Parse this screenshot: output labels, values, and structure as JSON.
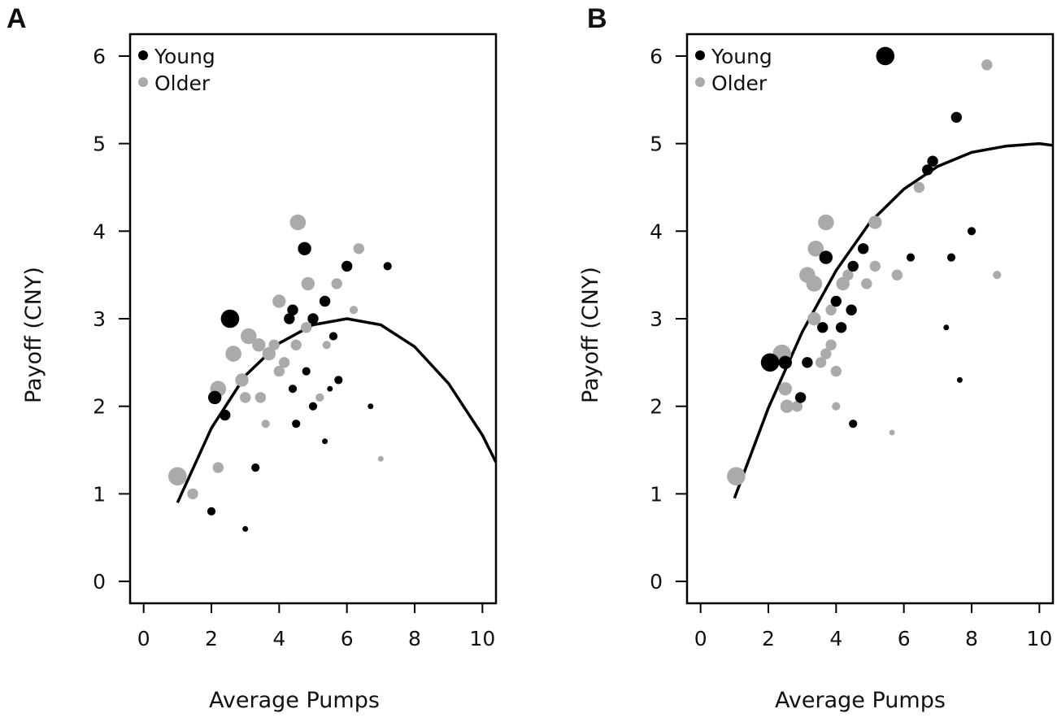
{
  "colors": {
    "young": "#000000",
    "older": "#aaaaaa",
    "axis": "#000000",
    "curve": "#000000"
  },
  "chart_data": [
    {
      "panel_label": "A",
      "type": "scatter",
      "xlabel": "Average Pumps",
      "ylabel": "Payoff (CNY)",
      "xlim": [
        -0.4,
        10.4
      ],
      "ylim": [
        -0.25,
        6.25
      ],
      "xticks": [
        "0",
        "2",
        "4",
        "6",
        "8",
        "10"
      ],
      "yticks": [
        "0",
        "1",
        "2",
        "3",
        "4",
        "5",
        "6"
      ],
      "legend": {
        "position": "top-left",
        "entries": [
          "Young",
          "Older"
        ]
      },
      "series": [
        {
          "name": "Young",
          "color": "#000000",
          "points": [
            {
              "x": 2.0,
              "y": 0.8,
              "size": 2
            },
            {
              "x": 2.1,
              "y": 2.1,
              "size": 4
            },
            {
              "x": 2.4,
              "y": 1.9,
              "size": 3
            },
            {
              "x": 2.55,
              "y": 3.0,
              "size": 6
            },
            {
              "x": 3.0,
              "y": 0.6,
              "size": 1
            },
            {
              "x": 3.3,
              "y": 1.3,
              "size": 2
            },
            {
              "x": 4.3,
              "y": 3.0,
              "size": 3
            },
            {
              "x": 4.4,
              "y": 3.1,
              "size": 3
            },
            {
              "x": 4.4,
              "y": 2.2,
              "size": 2
            },
            {
              "x": 4.5,
              "y": 1.8,
              "size": 2
            },
            {
              "x": 4.75,
              "y": 3.8,
              "size": 4
            },
            {
              "x": 4.8,
              "y": 2.4,
              "size": 2
            },
            {
              "x": 5.0,
              "y": 3.0,
              "size": 3
            },
            {
              "x": 5.0,
              "y": 2.0,
              "size": 2
            },
            {
              "x": 5.35,
              "y": 3.2,
              "size": 3
            },
            {
              "x": 5.35,
              "y": 1.6,
              "size": 1
            },
            {
              "x": 5.5,
              "y": 2.2,
              "size": 1
            },
            {
              "x": 5.6,
              "y": 2.8,
              "size": 2
            },
            {
              "x": 5.75,
              "y": 2.3,
              "size": 2
            },
            {
              "x": 6.0,
              "y": 3.6,
              "size": 3
            },
            {
              "x": 6.7,
              "y": 2.0,
              "size": 1
            },
            {
              "x": 7.2,
              "y": 3.6,
              "size": 2
            }
          ]
        },
        {
          "name": "Older",
          "color": "#aaaaaa",
          "points": [
            {
              "x": 1.0,
              "y": 1.2,
              "size": 6
            },
            {
              "x": 1.45,
              "y": 1.0,
              "size": 3
            },
            {
              "x": 2.2,
              "y": 2.2,
              "size": 5
            },
            {
              "x": 2.2,
              "y": 1.3,
              "size": 3
            },
            {
              "x": 2.65,
              "y": 2.6,
              "size": 5
            },
            {
              "x": 2.9,
              "y": 2.3,
              "size": 4
            },
            {
              "x": 3.0,
              "y": 2.1,
              "size": 3
            },
            {
              "x": 3.1,
              "y": 2.8,
              "size": 5
            },
            {
              "x": 3.4,
              "y": 2.7,
              "size": 4
            },
            {
              "x": 3.45,
              "y": 2.1,
              "size": 3
            },
            {
              "x": 3.6,
              "y": 1.8,
              "size": 2
            },
            {
              "x": 3.7,
              "y": 2.6,
              "size": 4
            },
            {
              "x": 3.85,
              "y": 2.7,
              "size": 3
            },
            {
              "x": 4.0,
              "y": 3.2,
              "size": 4
            },
            {
              "x": 4.0,
              "y": 2.4,
              "size": 3
            },
            {
              "x": 4.15,
              "y": 2.5,
              "size": 3
            },
            {
              "x": 4.55,
              "y": 4.1,
              "size": 5
            },
            {
              "x": 4.5,
              "y": 2.7,
              "size": 3
            },
            {
              "x": 4.8,
              "y": 2.9,
              "size": 3
            },
            {
              "x": 4.85,
              "y": 3.4,
              "size": 4
            },
            {
              "x": 5.2,
              "y": 2.1,
              "size": 2
            },
            {
              "x": 5.4,
              "y": 2.7,
              "size": 2
            },
            {
              "x": 5.7,
              "y": 3.4,
              "size": 3
            },
            {
              "x": 6.2,
              "y": 3.1,
              "size": 2
            },
            {
              "x": 6.35,
              "y": 3.8,
              "size": 3
            },
            {
              "x": 7.0,
              "y": 1.4,
              "size": 1
            }
          ]
        }
      ],
      "fit_curve": {
        "x": [
          1.0,
          2.0,
          3.0,
          4.0,
          5.0,
          6.0,
          7.0,
          8.0,
          9.0,
          10.0,
          10.4
        ],
        "y": [
          0.9,
          1.75,
          2.35,
          2.72,
          2.93,
          3.0,
          2.93,
          2.68,
          2.26,
          1.67,
          1.36
        ]
      }
    },
    {
      "panel_label": "B",
      "type": "scatter",
      "xlabel": "Average Pumps",
      "ylabel": "Payoff (CNY)",
      "xlim": [
        -0.4,
        10.4
      ],
      "ylim": [
        -0.25,
        6.25
      ],
      "xticks": [
        "0",
        "2",
        "4",
        "6",
        "8",
        "10"
      ],
      "yticks": [
        "0",
        "1",
        "2",
        "3",
        "4",
        "5",
        "6"
      ],
      "legend": {
        "position": "top-left",
        "entries": [
          "Young",
          "Older"
        ]
      },
      "series": [
        {
          "name": "Young",
          "color": "#000000",
          "points": [
            {
              "x": 2.05,
              "y": 2.5,
              "size": 6
            },
            {
              "x": 2.5,
              "y": 2.5,
              "size": 4
            },
            {
              "x": 2.95,
              "y": 2.1,
              "size": 3
            },
            {
              "x": 3.15,
              "y": 2.5,
              "size": 3
            },
            {
              "x": 3.6,
              "y": 2.9,
              "size": 3
            },
            {
              "x": 3.7,
              "y": 3.7,
              "size": 4
            },
            {
              "x": 4.0,
              "y": 3.2,
              "size": 3
            },
            {
              "x": 4.15,
              "y": 2.9,
              "size": 3
            },
            {
              "x": 4.45,
              "y": 3.1,
              "size": 3
            },
            {
              "x": 4.5,
              "y": 3.6,
              "size": 3
            },
            {
              "x": 4.5,
              "y": 1.8,
              "size": 2
            },
            {
              "x": 4.8,
              "y": 3.8,
              "size": 3
            },
            {
              "x": 5.45,
              "y": 6.0,
              "size": 6
            },
            {
              "x": 6.2,
              "y": 3.7,
              "size": 2
            },
            {
              "x": 6.7,
              "y": 4.7,
              "size": 3
            },
            {
              "x": 6.85,
              "y": 4.8,
              "size": 3
            },
            {
              "x": 7.25,
              "y": 2.9,
              "size": 1
            },
            {
              "x": 7.4,
              "y": 3.7,
              "size": 2
            },
            {
              "x": 7.55,
              "y": 5.3,
              "size": 3
            },
            {
              "x": 7.65,
              "y": 2.3,
              "size": 1
            },
            {
              "x": 8.0,
              "y": 4.0,
              "size": 2
            }
          ]
        },
        {
          "name": "Older",
          "color": "#aaaaaa",
          "points": [
            {
              "x": 1.05,
              "y": 1.2,
              "size": 6
            },
            {
              "x": 2.4,
              "y": 2.6,
              "size": 6
            },
            {
              "x": 2.5,
              "y": 2.2,
              "size": 4
            },
            {
              "x": 2.55,
              "y": 2.0,
              "size": 4
            },
            {
              "x": 2.85,
              "y": 2.0,
              "size": 3
            },
            {
              "x": 3.15,
              "y": 3.5,
              "size": 5
            },
            {
              "x": 3.35,
              "y": 3.4,
              "size": 5
            },
            {
              "x": 3.35,
              "y": 3.0,
              "size": 4
            },
            {
              "x": 3.4,
              "y": 3.8,
              "size": 5
            },
            {
              "x": 3.55,
              "y": 2.5,
              "size": 3
            },
            {
              "x": 3.7,
              "y": 4.1,
              "size": 5
            },
            {
              "x": 3.7,
              "y": 2.6,
              "size": 3
            },
            {
              "x": 3.85,
              "y": 3.1,
              "size": 3
            },
            {
              "x": 3.85,
              "y": 2.7,
              "size": 3
            },
            {
              "x": 4.0,
              "y": 2.4,
              "size": 3
            },
            {
              "x": 4.0,
              "y": 2.0,
              "size": 2
            },
            {
              "x": 4.2,
              "y": 3.4,
              "size": 4
            },
            {
              "x": 4.35,
              "y": 3.5,
              "size": 3
            },
            {
              "x": 4.9,
              "y": 3.4,
              "size": 3
            },
            {
              "x": 5.15,
              "y": 4.1,
              "size": 4
            },
            {
              "x": 5.15,
              "y": 3.6,
              "size": 3
            },
            {
              "x": 5.65,
              "y": 1.7,
              "size": 1
            },
            {
              "x": 5.8,
              "y": 3.5,
              "size": 3
            },
            {
              "x": 6.45,
              "y": 4.5,
              "size": 3
            },
            {
              "x": 8.45,
              "y": 5.9,
              "size": 3
            },
            {
              "x": 8.75,
              "y": 3.5,
              "size": 2
            }
          ]
        }
      ],
      "fit_curve": {
        "x": [
          1.0,
          2.0,
          3.0,
          4.0,
          5.0,
          6.0,
          7.0,
          8.0,
          9.0,
          10.0,
          10.4
        ],
        "y": [
          0.95,
          1.98,
          2.85,
          3.55,
          4.1,
          4.48,
          4.74,
          4.9,
          4.97,
          5.0,
          4.98
        ]
      }
    }
  ]
}
